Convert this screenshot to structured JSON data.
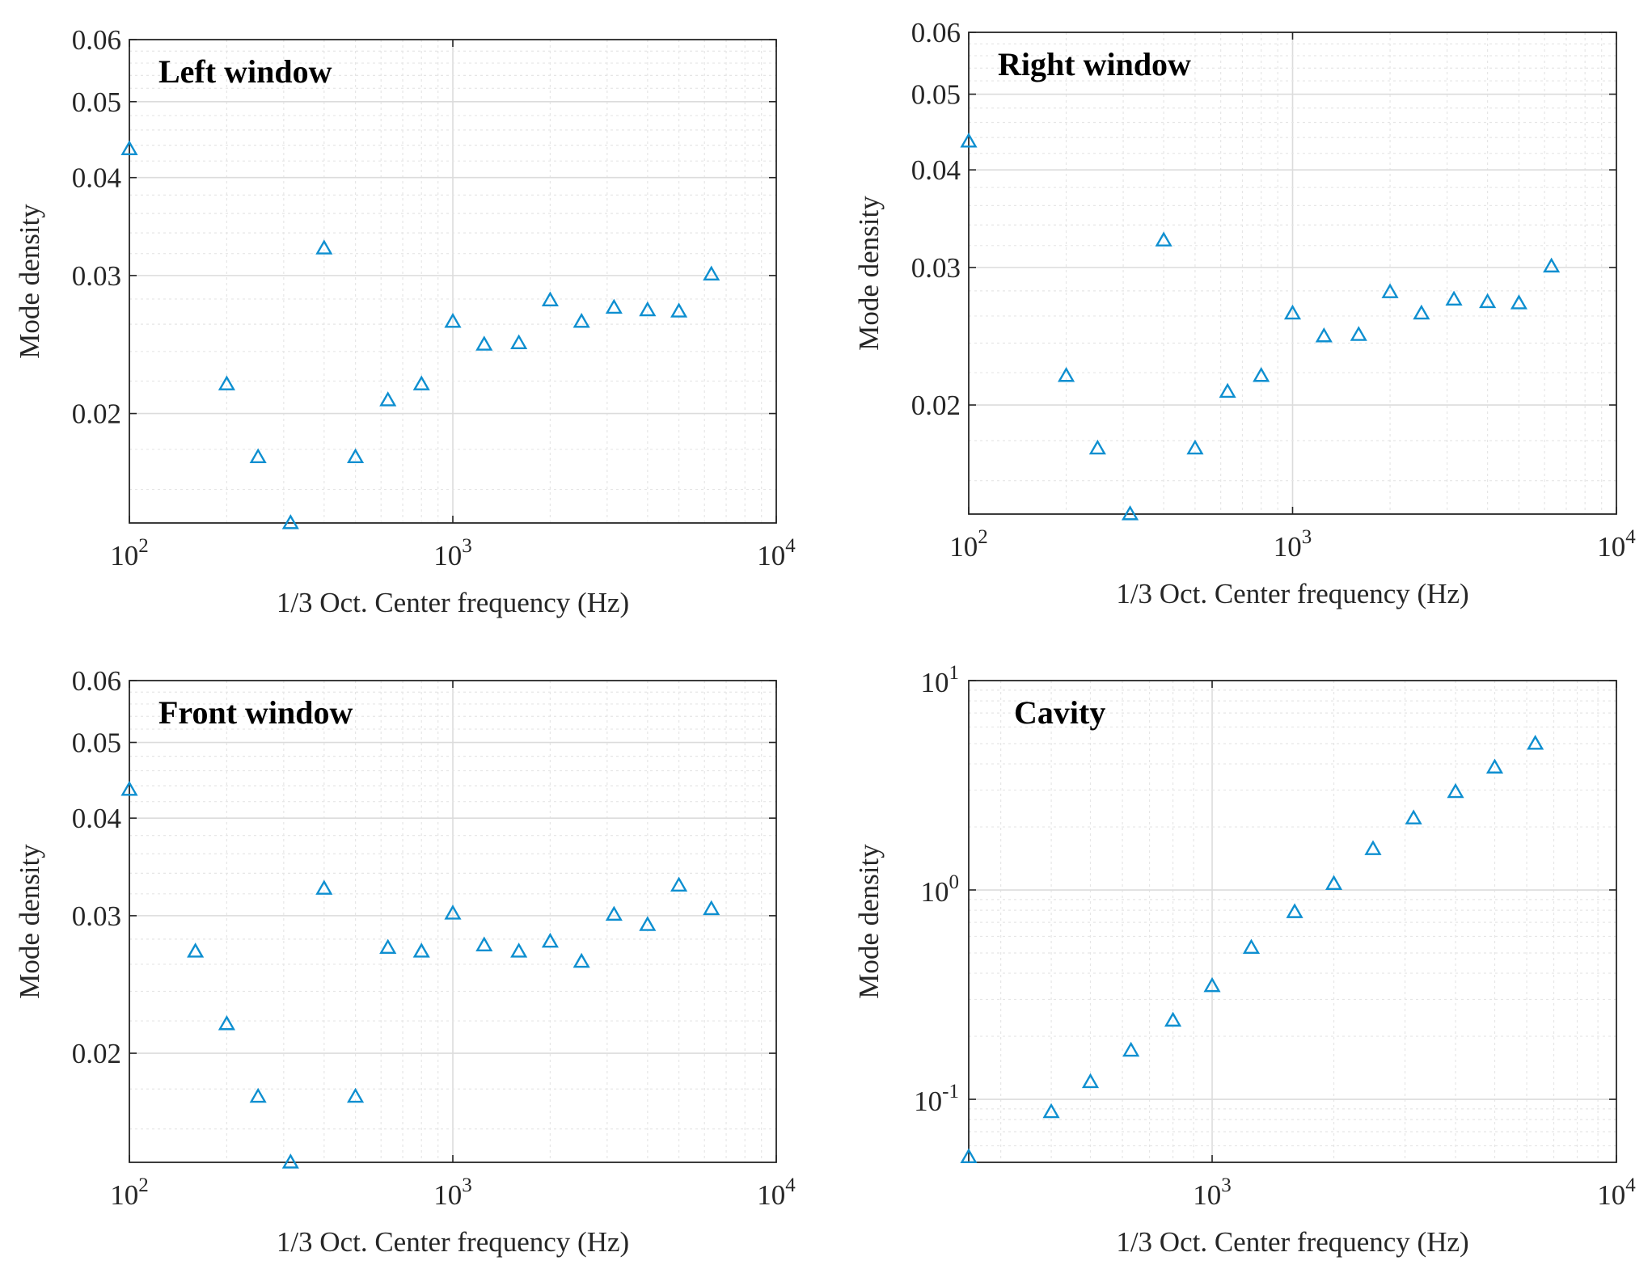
{
  "figure": {
    "marker_color": "#0e8fd0"
  },
  "chart_data": [
    {
      "type": "scatter",
      "title": "Left window",
      "xlabel": "1/3 Oct. Center frequency (Hz)",
      "ylabel": "Mode density",
      "xscale": "log",
      "yscale": "log",
      "xlim": [
        100,
        10000
      ],
      "ylim": [
        0.0145,
        0.06
      ],
      "xticks": [
        100,
        1000,
        10000
      ],
      "xtick_labels": [
        {
          "base": "10",
          "exp": "2"
        },
        {
          "base": "10",
          "exp": "3"
        },
        {
          "base": "10",
          "exp": "4"
        }
      ],
      "yticks": [
        0.02,
        0.03,
        0.04,
        0.05,
        0.06
      ],
      "ytick_labels": [
        "0.02",
        "0.03",
        "0.04",
        "0.05",
        "0.06"
      ],
      "marker": "triangle",
      "x": [
        100,
        200,
        250,
        315,
        400,
        500,
        630,
        800,
        1000,
        1250,
        1600,
        2000,
        2500,
        3150,
        4000,
        5000,
        6300
      ],
      "y": [
        0.0435,
        0.0218,
        0.0176,
        0.0145,
        0.0325,
        0.0176,
        0.0208,
        0.0218,
        0.0262,
        0.0245,
        0.0246,
        0.0279,
        0.0262,
        0.0273,
        0.0271,
        0.027,
        0.0301
      ]
    },
    {
      "type": "scatter",
      "title": "Right window",
      "xlabel": "1/3 Oct. Center frequency (Hz)",
      "ylabel": "Mode density",
      "xscale": "log",
      "yscale": "log",
      "xlim": [
        100,
        10000
      ],
      "ylim": [
        0.0145,
        0.06
      ],
      "xticks": [
        100,
        1000,
        10000
      ],
      "xtick_labels": [
        {
          "base": "10",
          "exp": "2"
        },
        {
          "base": "10",
          "exp": "3"
        },
        {
          "base": "10",
          "exp": "4"
        }
      ],
      "yticks": [
        0.02,
        0.03,
        0.04,
        0.05,
        0.06
      ],
      "ytick_labels": [
        "0.02",
        "0.03",
        "0.04",
        "0.05",
        "0.06"
      ],
      "marker": "triangle",
      "x": [
        100,
        200,
        250,
        315,
        400,
        500,
        630,
        800,
        1000,
        1250,
        1600,
        2000,
        2500,
        3150,
        4000,
        5000,
        6300
      ],
      "y": [
        0.0435,
        0.0218,
        0.0176,
        0.0145,
        0.0325,
        0.0176,
        0.0208,
        0.0218,
        0.0262,
        0.0245,
        0.0246,
        0.0279,
        0.0262,
        0.0273,
        0.0271,
        0.027,
        0.0301
      ]
    },
    {
      "type": "scatter",
      "title": "Front window",
      "xlabel": "1/3 Oct. Center frequency (Hz)",
      "ylabel": "Mode density",
      "xscale": "log",
      "yscale": "log",
      "xlim": [
        100,
        10000
      ],
      "ylim": [
        0.0145,
        0.06
      ],
      "xticks": [
        100,
        1000,
        10000
      ],
      "xtick_labels": [
        {
          "base": "10",
          "exp": "2"
        },
        {
          "base": "10",
          "exp": "3"
        },
        {
          "base": "10",
          "exp": "4"
        }
      ],
      "yticks": [
        0.02,
        0.03,
        0.04,
        0.05,
        0.06
      ],
      "ytick_labels": [
        "0.02",
        "0.03",
        "0.04",
        "0.05",
        "0.06"
      ],
      "marker": "triangle",
      "x": [
        100,
        160,
        200,
        250,
        315,
        400,
        500,
        630,
        800,
        1000,
        1250,
        1600,
        2000,
        2500,
        3150,
        4000,
        5000,
        6300
      ],
      "y": [
        0.0435,
        0.027,
        0.0218,
        0.0176,
        0.0145,
        0.0325,
        0.0176,
        0.0273,
        0.027,
        0.0302,
        0.0275,
        0.027,
        0.0278,
        0.0262,
        0.0301,
        0.0292,
        0.0328,
        0.0306
      ]
    },
    {
      "type": "scatter",
      "title": "Cavity",
      "xlabel": "1/3 Oct. Center frequency (Hz)",
      "ylabel": "Mode density",
      "xscale": "log",
      "yscale": "log",
      "xlim": [
        250,
        10000
      ],
      "ylim": [
        0.05,
        10
      ],
      "xticks": [
        1000,
        10000
      ],
      "xtick_labels": [
        {
          "base": "10",
          "exp": "3"
        },
        {
          "base": "10",
          "exp": "4"
        }
      ],
      "yticks": [
        0.1,
        1,
        10
      ],
      "ytick_labels": [
        {
          "base": "10",
          "exp": "-1"
        },
        {
          "base": "10",
          "exp": "0"
        },
        {
          "base": "10",
          "exp": "1"
        }
      ],
      "marker": "triangle",
      "x": [
        250,
        400,
        500,
        630,
        800,
        1000,
        1250,
        1600,
        2000,
        2500,
        3150,
        4000,
        5000,
        6300
      ],
      "y": [
        0.053,
        0.087,
        0.121,
        0.171,
        0.238,
        0.348,
        0.53,
        0.785,
        1.07,
        1.57,
        2.2,
        2.94,
        3.85,
        5.0
      ]
    }
  ]
}
